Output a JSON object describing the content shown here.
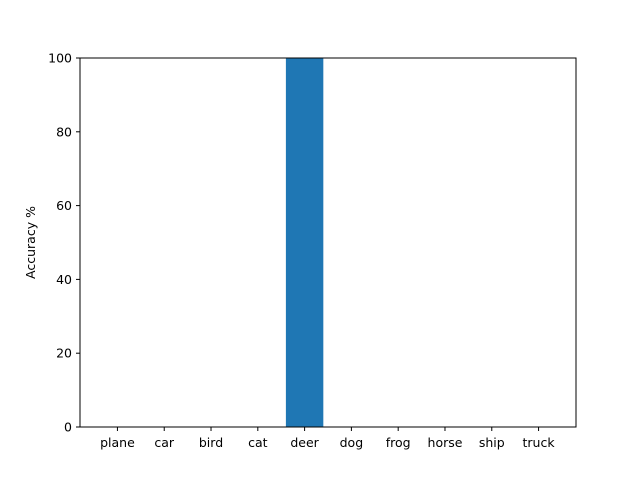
{
  "chart_data": {
    "type": "bar",
    "categories": [
      "plane",
      "car",
      "bird",
      "cat",
      "deer",
      "dog",
      "frog",
      "horse",
      "ship",
      "truck"
    ],
    "values": [
      0,
      0,
      0,
      0,
      100,
      0,
      0,
      0,
      0,
      0
    ],
    "title": "",
    "xlabel": "",
    "ylabel": "Accuracy %",
    "ylim": [
      0,
      100
    ],
    "yticks": [
      "0",
      "20",
      "40",
      "60",
      "80",
      "100"
    ],
    "bar_color": "#1f77b4",
    "grid": false
  }
}
